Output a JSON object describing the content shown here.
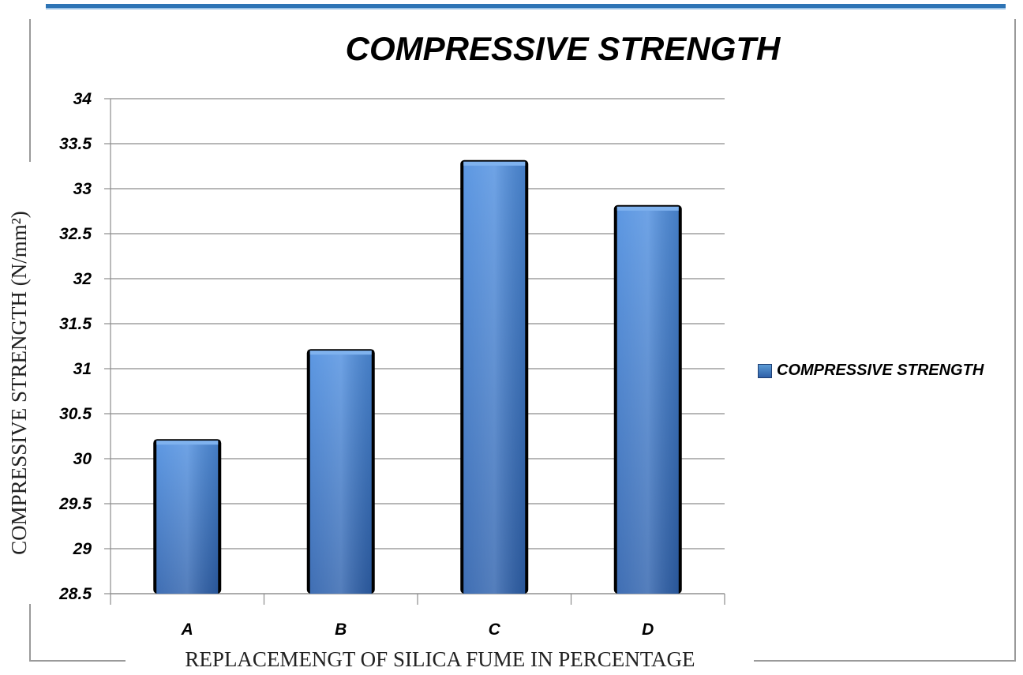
{
  "chart_data": {
    "type": "bar",
    "title": "COMPRESSIVE STRENGTH",
    "xlabel": "REPLACEMENGT OF SILICA FUME IN PERCENTAGE",
    "ylabel": "COMPRESSIVE STRENGTH (N/mm²)",
    "categories": [
      "A",
      "B",
      "C",
      "D"
    ],
    "series": [
      {
        "name": "COMPRESSIVE STRENGTH",
        "values": [
          30.2,
          31.2,
          33.3,
          32.8
        ]
      }
    ],
    "ylim": [
      28.5,
      34
    ],
    "yticks": [
      "34",
      "33.5",
      "33",
      "32.5",
      "32",
      "31.5",
      "31",
      "30.5",
      "30",
      "29.5",
      "29",
      "28.5"
    ],
    "grid": true,
    "legend_position": "right",
    "bar_color": "#3a78c9"
  }
}
